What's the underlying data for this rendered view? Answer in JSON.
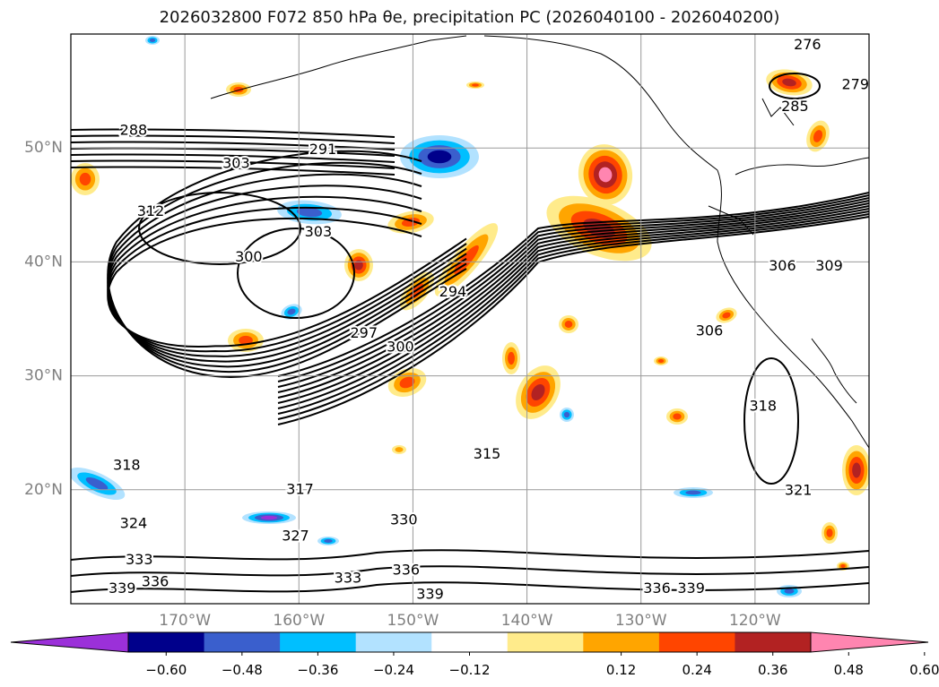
{
  "title": "2026032800 F072 850 hPa θe, precipitation PC (2026040100 - 2026040200)",
  "map": {
    "lon_range": [
      -180,
      -110
    ],
    "lat_range": [
      10,
      60
    ],
    "lat_ticks": [
      "50°N",
      "40°N",
      "30°N",
      "20°N"
    ],
    "lon_ticks": [
      "170°W",
      "160°W",
      "150°W",
      "140°W",
      "130°W",
      "120°W"
    ],
    "contour_labels": [
      {
        "text": "288",
        "lon": -174.5,
        "lat": 51.5
      },
      {
        "text": "291",
        "lon": -157.9,
        "lat": 49.8
      },
      {
        "text": "303",
        "lon": -165.5,
        "lat": 48.6
      },
      {
        "text": "312",
        "lon": -173.0,
        "lat": 44.4
      },
      {
        "text": "303",
        "lon": -158.3,
        "lat": 42.6
      },
      {
        "text": "300",
        "lon": -164.4,
        "lat": 40.4
      },
      {
        "text": "294",
        "lon": -146.5,
        "lat": 37.3
      },
      {
        "text": "297",
        "lon": -154.3,
        "lat": 33.7
      },
      {
        "text": "300",
        "lon": -151.1,
        "lat": 32.5
      },
      {
        "text": "306",
        "lon": -124.0,
        "lat": 33.9
      },
      {
        "text": "315",
        "lon": -143.5,
        "lat": 23.1
      },
      {
        "text": "318",
        "lon": -175.1,
        "lat": 22.1
      },
      {
        "text": "318",
        "lon": -119.3,
        "lat": 27.3
      },
      {
        "text": "317",
        "lon": -159.9,
        "lat": 20.0
      },
      {
        "text": "324",
        "lon": -174.5,
        "lat": 17.0
      },
      {
        "text": "327",
        "lon": -160.3,
        "lat": 15.9
      },
      {
        "text": "330",
        "lon": -150.8,
        "lat": 17.3
      },
      {
        "text": "333",
        "lon": -174.0,
        "lat": 13.8
      },
      {
        "text": "333",
        "lon": -155.7,
        "lat": 12.2
      },
      {
        "text": "336",
        "lon": -150.6,
        "lat": 12.9
      },
      {
        "text": "336",
        "lon": -172.6,
        "lat": 11.9
      },
      {
        "text": "339",
        "lon": -175.5,
        "lat": 11.3
      },
      {
        "text": "339",
        "lon": -148.5,
        "lat": 10.8
      },
      {
        "text": "336",
        "lon": -128.6,
        "lat": 11.3
      },
      {
        "text": "339",
        "lon": -125.6,
        "lat": 11.3
      },
      {
        "text": "306",
        "lon": -117.6,
        "lat": 39.6
      },
      {
        "text": "309",
        "lon": -113.5,
        "lat": 39.6
      },
      {
        "text": "276",
        "lon": -115.4,
        "lat": 59.0
      },
      {
        "text": "279",
        "lon": -111.2,
        "lat": 55.5
      },
      {
        "text": "285",
        "lon": -116.5,
        "lat": 53.6
      },
      {
        "text": "321",
        "lon": -116.2,
        "lat": 19.9
      }
    ]
  },
  "colorbar": {
    "tick_labels": [
      "−0.60",
      "−0.48",
      "−0.36",
      "−0.24",
      "−0.12",
      "0.12",
      "0.24",
      "0.36",
      "0.48",
      "0.60"
    ],
    "colors": [
      "#9b30d9",
      "#00008b",
      "#3a5fcd",
      "#00bfff",
      "#b2e2ff",
      "#ffffff",
      "#ffeb8b",
      "#ffa500",
      "#ff4500",
      "#b22222",
      "#ff85b0"
    ]
  }
}
